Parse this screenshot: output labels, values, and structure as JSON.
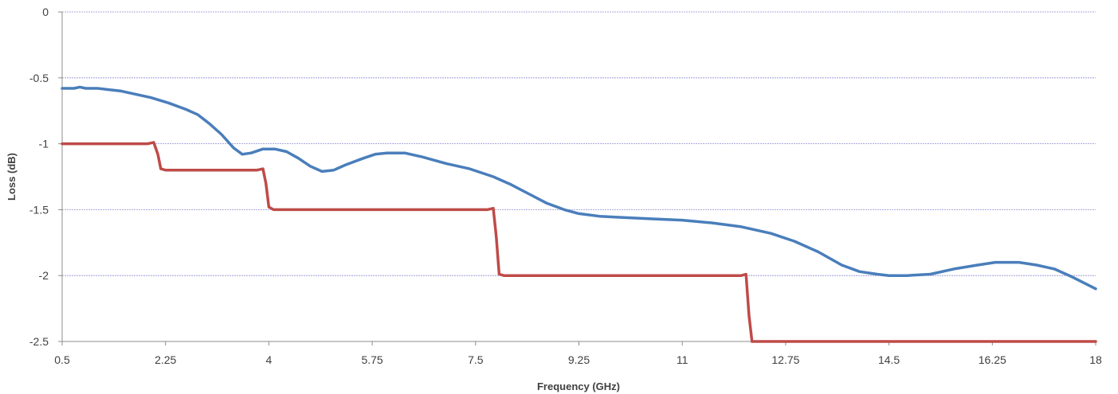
{
  "chart_data": {
    "type": "line",
    "xlabel": "Frequency (GHz)",
    "ylabel": "Loss (dB)",
    "xlim": [
      0.5,
      18
    ],
    "ylim": [
      -2.5,
      0
    ],
    "x_ticks": [
      "0.5",
      "2.25",
      "4",
      "5.75",
      "7.5",
      "9.25",
      "11",
      "12.75",
      "14.5",
      "16.25",
      "18"
    ],
    "y_ticks": [
      "0",
      "-0.5",
      "-1",
      "-1.5",
      "-2",
      "-2.5"
    ],
    "grid": "horizontal",
    "legend": "none",
    "series": [
      {
        "color": "#4A7EBB",
        "points": [
          [
            0.5,
            -0.58
          ],
          [
            0.7,
            -0.58
          ],
          [
            0.8,
            -0.57
          ],
          [
            0.9,
            -0.58
          ],
          [
            1.1,
            -0.58
          ],
          [
            1.3,
            -0.59
          ],
          [
            1.5,
            -0.6
          ],
          [
            1.7,
            -0.62
          ],
          [
            2.0,
            -0.65
          ],
          [
            2.3,
            -0.69
          ],
          [
            2.6,
            -0.74
          ],
          [
            2.8,
            -0.78
          ],
          [
            3.0,
            -0.85
          ],
          [
            3.2,
            -0.93
          ],
          [
            3.4,
            -1.03
          ],
          [
            3.55,
            -1.08
          ],
          [
            3.7,
            -1.07
          ],
          [
            3.9,
            -1.04
          ],
          [
            4.1,
            -1.04
          ],
          [
            4.3,
            -1.06
          ],
          [
            4.5,
            -1.11
          ],
          [
            4.7,
            -1.17
          ],
          [
            4.9,
            -1.21
          ],
          [
            5.1,
            -1.2
          ],
          [
            5.3,
            -1.16
          ],
          [
            5.6,
            -1.11
          ],
          [
            5.8,
            -1.08
          ],
          [
            6.0,
            -1.07
          ],
          [
            6.3,
            -1.07
          ],
          [
            6.6,
            -1.1
          ],
          [
            7.0,
            -1.15
          ],
          [
            7.4,
            -1.19
          ],
          [
            7.8,
            -1.25
          ],
          [
            8.1,
            -1.31
          ],
          [
            8.4,
            -1.38
          ],
          [
            8.7,
            -1.45
          ],
          [
            9.0,
            -1.5
          ],
          [
            9.25,
            -1.53
          ],
          [
            9.6,
            -1.55
          ],
          [
            10.0,
            -1.56
          ],
          [
            10.5,
            -1.57
          ],
          [
            11.0,
            -1.58
          ],
          [
            11.5,
            -1.6
          ],
          [
            12.0,
            -1.63
          ],
          [
            12.5,
            -1.68
          ],
          [
            12.9,
            -1.74
          ],
          [
            13.3,
            -1.82
          ],
          [
            13.7,
            -1.92
          ],
          [
            14.0,
            -1.97
          ],
          [
            14.3,
            -1.99
          ],
          [
            14.5,
            -2.0
          ],
          [
            14.8,
            -2.0
          ],
          [
            15.2,
            -1.99
          ],
          [
            15.6,
            -1.95
          ],
          [
            16.0,
            -1.92
          ],
          [
            16.3,
            -1.9
          ],
          [
            16.7,
            -1.9
          ],
          [
            17.0,
            -1.92
          ],
          [
            17.3,
            -1.95
          ],
          [
            17.6,
            -2.01
          ],
          [
            18.0,
            -2.1
          ]
        ]
      },
      {
        "color": "#BE4B48",
        "points": [
          [
            0.5,
            -1.0
          ],
          [
            1.95,
            -1.0
          ],
          [
            2.05,
            -0.99
          ],
          [
            2.12,
            -1.08
          ],
          [
            2.17,
            -1.19
          ],
          [
            2.25,
            -1.2
          ],
          [
            3.8,
            -1.2
          ],
          [
            3.9,
            -1.19
          ],
          [
            3.95,
            -1.3
          ],
          [
            4.0,
            -1.48
          ],
          [
            4.08,
            -1.5
          ],
          [
            7.7,
            -1.5
          ],
          [
            7.8,
            -1.49
          ],
          [
            7.85,
            -1.7
          ],
          [
            7.9,
            -1.99
          ],
          [
            7.98,
            -2.0
          ],
          [
            12.0,
            -2.0
          ],
          [
            12.08,
            -1.99
          ],
          [
            12.13,
            -2.3
          ],
          [
            12.18,
            -2.5
          ],
          [
            18.0,
            -2.5
          ]
        ]
      }
    ]
  }
}
